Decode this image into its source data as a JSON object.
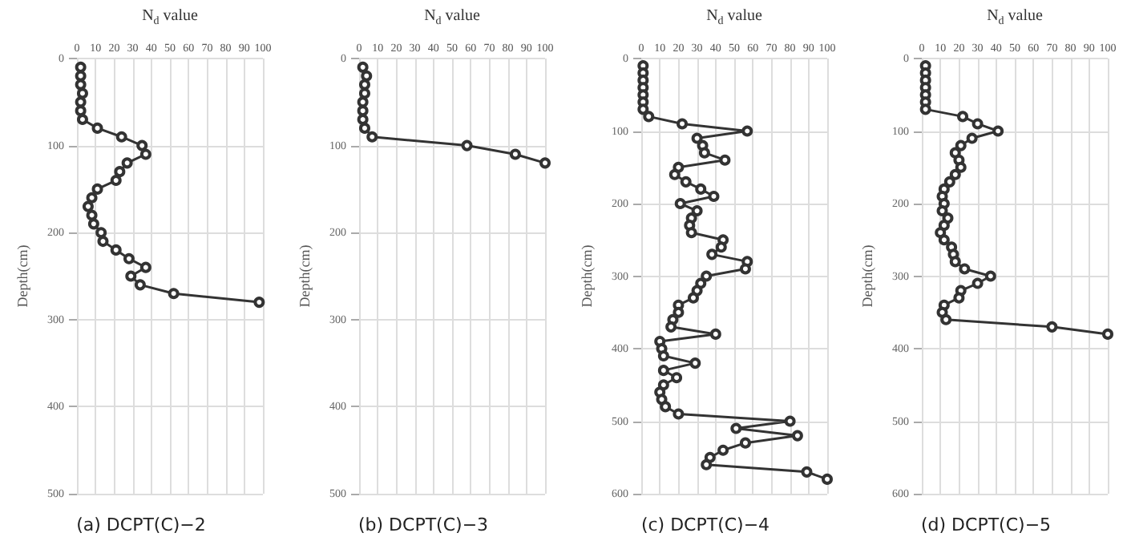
{
  "chart_data": [
    {
      "type": "line",
      "title": "(a) DCPT(C)−2",
      "xlabel": "N$_{d}$ value",
      "ylabel": "Depth(cm)",
      "xlim": [
        0,
        100
      ],
      "xticks": [
        0,
        10,
        20,
        30,
        40,
        50,
        60,
        70,
        80,
        90,
        100
      ],
      "ylim": [
        500,
        0
      ],
      "yticks": [
        0,
        100,
        200,
        300,
        400,
        500
      ],
      "grid": true,
      "marker": "circle",
      "series": [
        {
          "color": "#333333",
          "x": [
            2,
            2,
            2,
            3,
            2,
            2,
            3,
            11,
            24,
            35,
            37,
            27,
            23,
            21,
            11,
            8,
            6,
            8,
            9,
            13,
            14,
            21,
            28,
            37,
            29,
            34,
            52,
            98
          ],
          "values": [
            10,
            20,
            30,
            40,
            50,
            60,
            70,
            80,
            90,
            100,
            110,
            120,
            130,
            140,
            150,
            160,
            170,
            180,
            190,
            200,
            210,
            220,
            230,
            240,
            250,
            260,
            270,
            280
          ]
        }
      ]
    },
    {
      "type": "line",
      "title": "(b) DCPT(C)−3",
      "xlabel": "N$_{d}$ value",
      "ylabel": "Depth(cm)",
      "xlim": [
        0,
        100
      ],
      "xticks": [
        0,
        10,
        20,
        30,
        40,
        50,
        60,
        70,
        80,
        90,
        100
      ],
      "ylim": [
        500,
        0
      ],
      "yticks": [
        0,
        100,
        200,
        300,
        400,
        500
      ],
      "grid": true,
      "marker": "circle",
      "series": [
        {
          "color": "#333333",
          "x": [
            2,
            4,
            3,
            3,
            2,
            2,
            2,
            3,
            7,
            58,
            84,
            100
          ],
          "values": [
            10,
            20,
            30,
            40,
            50,
            60,
            70,
            80,
            90,
            100,
            110,
            120
          ]
        }
      ]
    },
    {
      "type": "line",
      "title": "(c) DCPT(C)−4",
      "xlabel": "N$_{d}$ value",
      "ylabel": "Depth(cm)",
      "xlim": [
        0,
        100
      ],
      "xticks": [
        0,
        10,
        20,
        30,
        40,
        50,
        60,
        70,
        80,
        90,
        100
      ],
      "ylim": [
        600,
        0
      ],
      "yticks": [
        0,
        100,
        200,
        300,
        400,
        500,
        600
      ],
      "grid": true,
      "marker": "circle",
      "series": [
        {
          "color": "#333333",
          "x": [
            1,
            1,
            1,
            1,
            1,
            1,
            1,
            4,
            22,
            57,
            30,
            33,
            34,
            45,
            20,
            18,
            24,
            32,
            39,
            21,
            30,
            27,
            26,
            27,
            44,
            43,
            38,
            57,
            56,
            35,
            32,
            30,
            28,
            20,
            20,
            17,
            16,
            40,
            10,
            11,
            12,
            29,
            12,
            19,
            12,
            10,
            11,
            13,
            20,
            80,
            51,
            84,
            56,
            44,
            37,
            35,
            89,
            100
          ],
          "values": [
            10,
            20,
            30,
            40,
            50,
            60,
            70,
            80,
            90,
            100,
            110,
            120,
            130,
            140,
            150,
            160,
            170,
            180,
            190,
            200,
            210,
            220,
            230,
            240,
            250,
            260,
            270,
            280,
            290,
            300,
            310,
            320,
            330,
            340,
            350,
            360,
            370,
            380,
            390,
            400,
            410,
            420,
            430,
            440,
            450,
            460,
            470,
            480,
            490,
            500,
            510,
            520,
            530,
            540,
            550,
            560,
            570,
            580
          ]
        }
      ]
    },
    {
      "type": "line",
      "title": "(d) DCPT(C)−5",
      "xlabel": "N$_{d}$ value",
      "ylabel": "Depth(cm)",
      "xlim": [
        0,
        100
      ],
      "xticks": [
        0,
        10,
        20,
        30,
        40,
        50,
        60,
        70,
        80,
        90,
        100
      ],
      "ylim": [
        600,
        0
      ],
      "yticks": [
        0,
        100,
        200,
        300,
        400,
        500,
        600
      ],
      "grid": true,
      "marker": "circle",
      "series": [
        {
          "color": "#333333",
          "x": [
            2,
            2,
            2,
            2,
            2,
            2,
            2,
            22,
            30,
            41,
            27,
            21,
            18,
            20,
            21,
            18,
            15,
            12,
            11,
            12,
            11,
            14,
            12,
            10,
            12,
            16,
            17,
            18,
            23,
            37,
            30,
            21,
            20,
            12,
            11,
            13,
            70,
            100
          ],
          "values": [
            10,
            20,
            30,
            40,
            50,
            60,
            70,
            80,
            90,
            100,
            110,
            120,
            130,
            140,
            150,
            160,
            170,
            180,
            190,
            200,
            210,
            220,
            230,
            240,
            250,
            260,
            270,
            280,
            290,
            300,
            310,
            320,
            330,
            340,
            350,
            360,
            370,
            380
          ]
        }
      ]
    }
  ]
}
